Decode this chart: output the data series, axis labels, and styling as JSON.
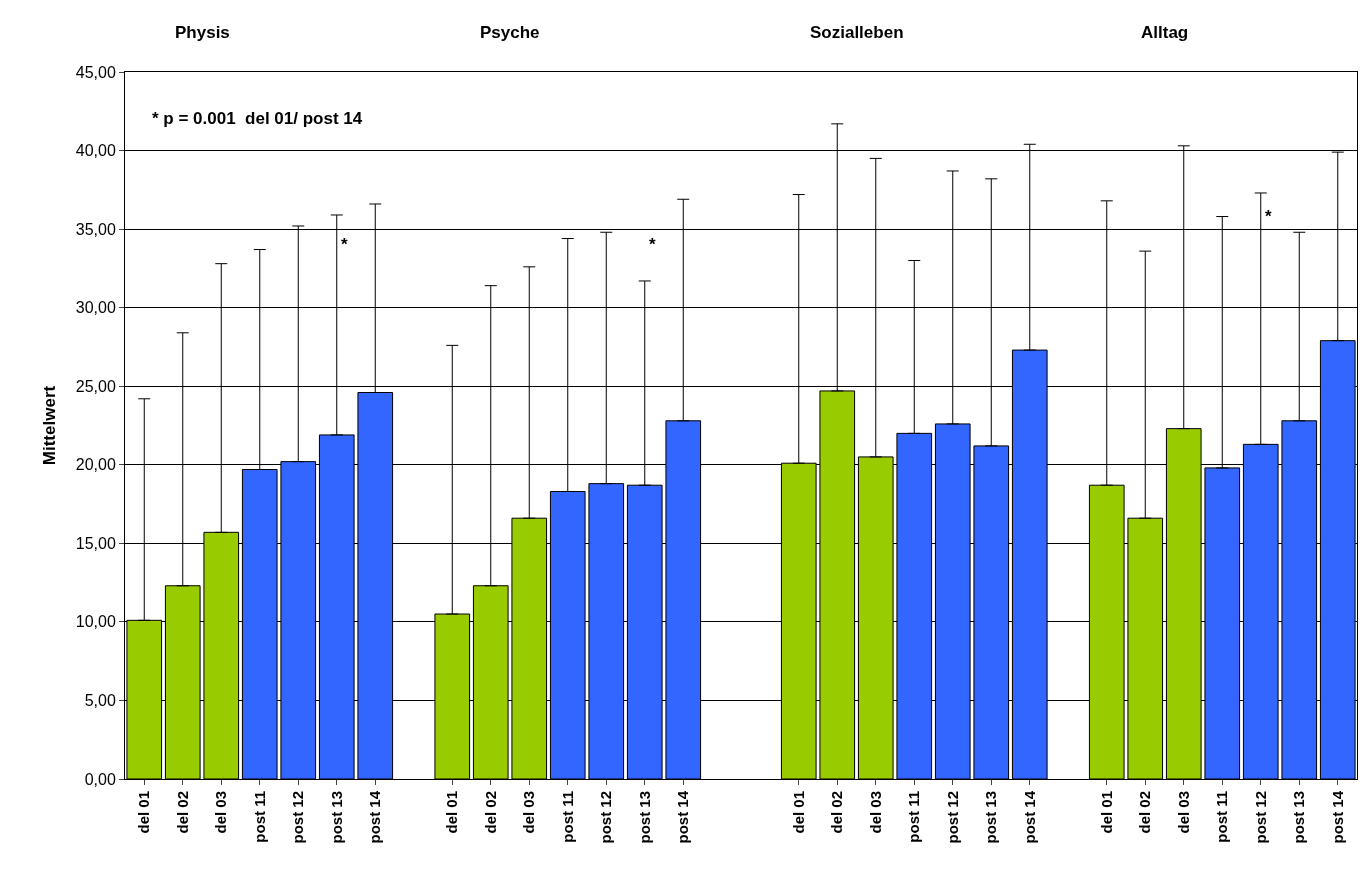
{
  "chart_data": {
    "type": "bar",
    "ylabel": "Mittelwert",
    "categories": [
      "del 01",
      "del 02",
      "del 03",
      "post 11",
      "post 12",
      "post 13",
      "post 14",
      null,
      "del 01",
      "del 02",
      "del 03",
      "post 11",
      "post 12",
      "post 13",
      "post 14",
      null,
      null,
      "del 01",
      "del 02",
      "del 03",
      "post 11",
      "post 12",
      "post 13",
      "post 14",
      null,
      "del 01",
      "del 02",
      "del 03",
      "post 11",
      "post 12",
      "post 13",
      "post 14"
    ],
    "values": [
      10.1,
      12.3,
      15.7,
      19.7,
      20.2,
      21.9,
      24.6,
      null,
      10.5,
      12.3,
      16.6,
      18.3,
      18.8,
      18.7,
      22.8,
      null,
      null,
      20.1,
      24.7,
      20.5,
      22.0,
      22.6,
      21.2,
      27.3,
      null,
      18.7,
      16.6,
      22.3,
      19.8,
      21.3,
      22.8,
      27.9
    ],
    "colors": [
      "#99cc00",
      "#99cc00",
      "#99cc00",
      "#3366ff",
      "#3366ff",
      "#3366ff",
      "#3366ff",
      null,
      "#99cc00",
      "#99cc00",
      "#99cc00",
      "#3366ff",
      "#3366ff",
      "#3366ff",
      "#3366ff",
      null,
      null,
      "#99cc00",
      "#99cc00",
      "#99cc00",
      "#3366ff",
      "#3366ff",
      "#3366ff",
      "#3366ff",
      null,
      "#99cc00",
      "#99cc00",
      "#99cc00",
      "#3366ff",
      "#3366ff",
      "#3366ff",
      "#3366ff"
    ],
    "errors": [
      [
        10.1,
        24.2
      ],
      [
        12.3,
        28.4
      ],
      [
        15.7,
        32.8
      ],
      [
        19.7,
        33.7
      ],
      [
        20.2,
        35.2
      ],
      [
        21.9,
        35.9
      ],
      [
        24.6,
        36.6
      ],
      null,
      [
        10.5,
        27.6
      ],
      [
        12.3,
        31.4
      ],
      [
        16.6,
        32.6
      ],
      [
        18.3,
        34.4
      ],
      [
        18.8,
        34.8
      ],
      [
        18.7,
        31.7
      ],
      [
        22.8,
        36.9
      ],
      null,
      null,
      [
        20.1,
        37.2
      ],
      [
        24.7,
        41.7
      ],
      [
        20.5,
        39.5
      ],
      [
        22.0,
        33.0
      ],
      [
        22.6,
        38.7
      ],
      [
        21.2,
        38.2
      ],
      [
        27.3,
        40.4
      ],
      null,
      [
        18.7,
        36.8
      ],
      [
        16.6,
        33.6
      ],
      [
        22.3,
        40.3
      ],
      [
        19.8,
        35.8
      ],
      [
        21.3,
        37.3
      ],
      [
        22.8,
        34.8
      ],
      [
        27.9,
        39.9
      ]
    ],
    "ylim": [
      0,
      45
    ],
    "yticks": [
      {
        "value": 0,
        "label": "0,00"
      },
      {
        "value": 5,
        "label": "5,00"
      },
      {
        "value": 10,
        "label": "10,00"
      },
      {
        "value": 15,
        "label": "15,00"
      },
      {
        "value": 20,
        "label": "20,00"
      },
      {
        "value": 25,
        "label": "25,00"
      },
      {
        "value": 30,
        "label": "30,00"
      },
      {
        "value": 35,
        "label": "35,00"
      },
      {
        "value": 40,
        "label": "40,00"
      },
      {
        "value": 45,
        "label": "45,00"
      }
    ],
    "grid": "y",
    "legend": false,
    "annotations": [
      "Physis",
      "Psyche",
      "Sozialleben",
      "Alltag",
      "* p = 0.001  del 01/ post 14",
      "*",
      "*",
      "*"
    ]
  }
}
